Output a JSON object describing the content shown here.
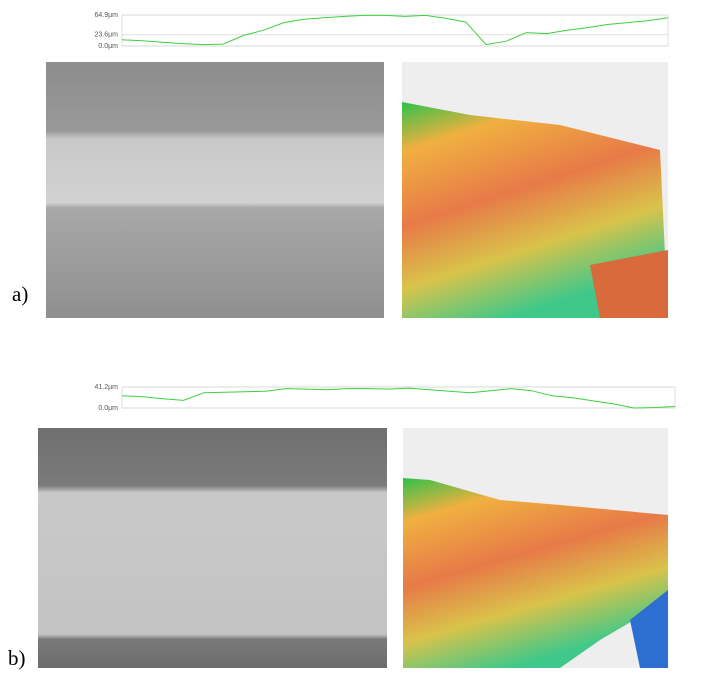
{
  "panel_labels": [
    "a)",
    "b)"
  ],
  "chart_data": [
    {
      "type": "line",
      "ylim": [
        0,
        64.9
      ],
      "yticks": [
        {
          "value": 0,
          "label": "0.0µm"
        },
        {
          "value": 23.6,
          "label": "23.6µm"
        },
        {
          "value": 64.9,
          "label": "64.9µm"
        }
      ],
      "grid": true,
      "series": [
        {
          "color": "#3fcf3f",
          "values": [
            13,
            11,
            8,
            5,
            3,
            4,
            22,
            33,
            49,
            56,
            59,
            62,
            64,
            64,
            62,
            64,
            58,
            50,
            3,
            10,
            28,
            26,
            33,
            38,
            45,
            49,
            53,
            59
          ]
        }
      ]
    },
    {
      "type": "line",
      "ylim": [
        0,
        41.2
      ],
      "yticks": [
        {
          "value": 0,
          "label": "0.0µm"
        },
        {
          "value": 41.2,
          "label": "41.2µm"
        }
      ],
      "grid": true,
      "series": [
        {
          "color": "#3fcf3f",
          "values": [
            24,
            22,
            18,
            15,
            30,
            31,
            32,
            33,
            38,
            37,
            36,
            38,
            38,
            37,
            39,
            36,
            33,
            30,
            34,
            38,
            34,
            24,
            20,
            14,
            8,
            0,
            1,
            3
          ]
        }
      ]
    }
  ]
}
